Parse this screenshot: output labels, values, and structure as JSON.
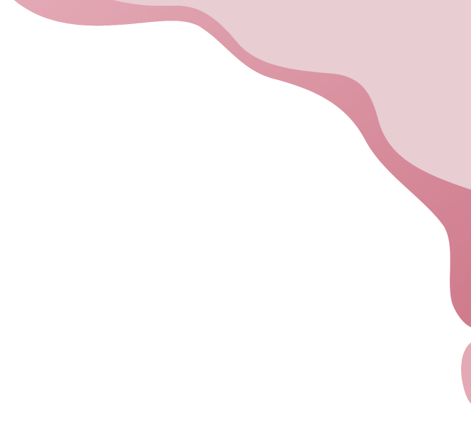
{
  "colors": {
    "background": "#ffffff",
    "light_wave": "#e8cdd3",
    "dark_wave_edge": "#cf7b8c",
    "dark_wave_inner": "#e3a9b5"
  }
}
